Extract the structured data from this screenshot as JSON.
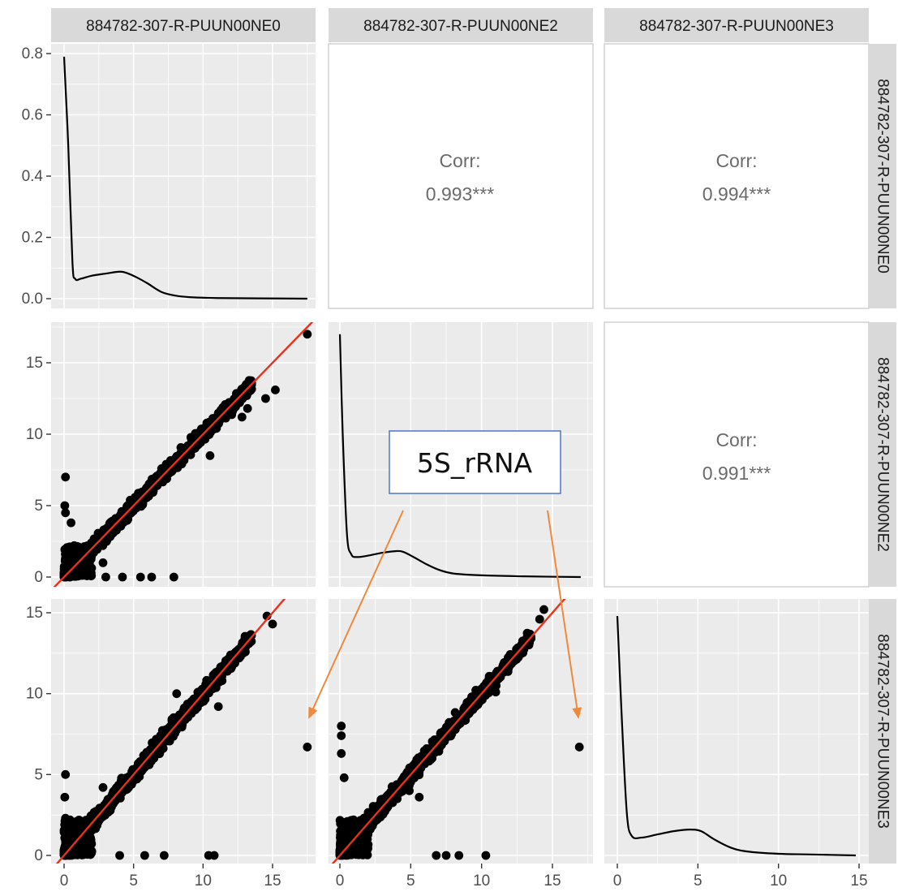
{
  "chart_data": {
    "type": "scatter",
    "description": "",
    "samples": [
      "884782-307-R-PUUN00NE0",
      "884782-307-R-PUUN00NE2",
      "884782-307-R-PUUN00NE3"
    ],
    "tick_labels": {
      "density_y": [
        "0.0",
        "0.2",
        "0.4",
        "0.6",
        "0.8"
      ],
      "axis": [
        "0",
        "5",
        "10",
        "15"
      ]
    },
    "density_ylim": [
      0,
      0.8
    ],
    "correlations": [
      {
        "row": "884782-307-R-PUUN00NE0",
        "col": "884782-307-R-PUUN00NE2",
        "label": "Corr:",
        "value": "0.993***"
      },
      {
        "row": "884782-307-R-PUUN00NE0",
        "col": "884782-307-R-PUUN00NE3",
        "label": "Corr:",
        "value": "0.994***"
      },
      {
        "row": "884782-307-R-PUUN00NE2",
        "col": "884782-307-R-PUUN00NE3",
        "label": "Corr:",
        "value": "0.991***"
      }
    ],
    "density_curve_NE0": [
      [
        0,
        0.79
      ],
      [
        0.3,
        0.5
      ],
      [
        0.6,
        0.12
      ],
      [
        0.8,
        0.065
      ],
      [
        1.2,
        0.065
      ],
      [
        2,
        0.075
      ],
      [
        3,
        0.082
      ],
      [
        4,
        0.088
      ],
      [
        4.5,
        0.084
      ],
      [
        5.2,
        0.07
      ],
      [
        6,
        0.05
      ],
      [
        7,
        0.022
      ],
      [
        8,
        0.01
      ],
      [
        9,
        0.005
      ],
      [
        11,
        0.002
      ],
      [
        14,
        0.001
      ],
      [
        17.5,
        0.0
      ]
    ],
    "scatter_NE2_vs_NE0": {
      "x_variable": "884782-307-R-PUUN00NE0",
      "y_variable": "884782-307-R-PUUN00NE2",
      "outliers": [
        [
          17.5,
          17.0
        ],
        [
          15.2,
          13.1
        ],
        [
          14.5,
          12.5
        ],
        [
          13.2,
          11.8
        ],
        [
          12.8,
          11.2
        ],
        [
          10.5,
          8.5
        ],
        [
          0.1,
          7.0
        ],
        [
          0.05,
          5.0
        ],
        [
          0.1,
          4.5
        ],
        [
          0.5,
          3.8
        ],
        [
          2.8,
          1.0
        ],
        [
          3.0,
          0
        ],
        [
          4.2,
          0
        ],
        [
          5.5,
          0
        ],
        [
          6.3,
          0
        ],
        [
          7.9,
          0
        ]
      ],
      "fit_line": {
        "slope": 1,
        "intercept": 0
      }
    },
    "scatter_NE3_vs_NE0": {
      "x_variable": "884782-307-R-PUUN00NE0",
      "y_variable": "884782-307-R-PUUN00NE3",
      "outliers": [
        [
          17.5,
          6.7
        ],
        [
          14.6,
          14.8
        ],
        [
          15.0,
          14.3
        ],
        [
          11.1,
          9.2
        ],
        [
          8.1,
          10.0
        ],
        [
          2.8,
          4.2
        ],
        [
          0.1,
          5.0
        ],
        [
          0.05,
          3.6
        ],
        [
          0.1,
          2.3
        ],
        [
          0.1,
          1.9
        ],
        [
          0.2,
          1.5
        ],
        [
          4.0,
          0
        ],
        [
          5.8,
          0
        ],
        [
          7.2,
          0
        ],
        [
          10.4,
          0
        ],
        [
          10.8,
          0
        ]
      ],
      "fit_line": {
        "slope": 1,
        "intercept": 0
      }
    },
    "density_curve_NE2": [
      [
        0,
        17.0
      ],
      [
        0.2,
        10
      ],
      [
        0.5,
        3
      ],
      [
        0.8,
        1.6
      ],
      [
        1.2,
        1.4
      ],
      [
        2,
        1.5
      ],
      [
        3,
        1.7
      ],
      [
        4,
        1.82
      ],
      [
        4.5,
        1.75
      ],
      [
        5.2,
        1.4
      ],
      [
        6.1,
        0.9
      ],
      [
        7,
        0.5
      ],
      [
        8,
        0.25
      ],
      [
        10,
        0.12
      ],
      [
        13,
        0.05
      ],
      [
        17,
        0.0
      ]
    ],
    "scatter_NE3_vs_NE2": {
      "x_variable": "884782-307-R-PUUN00NE2",
      "y_variable": "884782-307-R-PUUN00NE3",
      "outliers": [
        [
          16.9,
          6.7
        ],
        [
          14.4,
          15.2
        ],
        [
          14.1,
          14.6
        ],
        [
          11.0,
          10.1
        ],
        [
          9.3,
          9.8
        ],
        [
          0.1,
          8.0
        ],
        [
          0.1,
          7.4
        ],
        [
          0.1,
          6.3
        ],
        [
          0.3,
          4.8
        ],
        [
          4.9,
          4.0
        ],
        [
          5.6,
          3.6
        ],
        [
          6.8,
          0
        ],
        [
          7.5,
          0
        ],
        [
          8.4,
          0
        ],
        [
          10.3,
          0
        ]
      ],
      "fit_line": {
        "slope": 1,
        "intercept": 0
      }
    },
    "density_curve_NE3": [
      [
        0,
        14.8
      ],
      [
        0.3,
        8
      ],
      [
        0.6,
        2.5
      ],
      [
        0.9,
        1.2
      ],
      [
        1.5,
        1.1
      ],
      [
        2.5,
        1.3
      ],
      [
        3.5,
        1.5
      ],
      [
        4.5,
        1.6
      ],
      [
        5.2,
        1.5
      ],
      [
        6,
        1.0
      ],
      [
        7,
        0.5
      ],
      [
        8,
        0.25
      ],
      [
        10,
        0.1
      ],
      [
        12,
        0.06
      ],
      [
        14.8,
        0.0
      ]
    ],
    "annotation": {
      "text": "5S_rRNA",
      "points_to": [
        "884782-307-R-PUUN00NE0 = 17.5, 884782-307-R-PUUN00NE3 = 6.7",
        "884782-307-R-PUUN00NE2 = 16.9, 884782-307-R-PUUN00NE3 = 6.7"
      ]
    },
    "colors": {
      "panel_bg": "#ebebeb",
      "strip_bg": "#d9d9d9",
      "points": "#000000",
      "fit_line": "#e8321a",
      "annotation_arrow": "#ef8a3c",
      "annotation_box": "#4f74c7",
      "grid": "#ffffff"
    },
    "legend": "none",
    "grid": true
  }
}
